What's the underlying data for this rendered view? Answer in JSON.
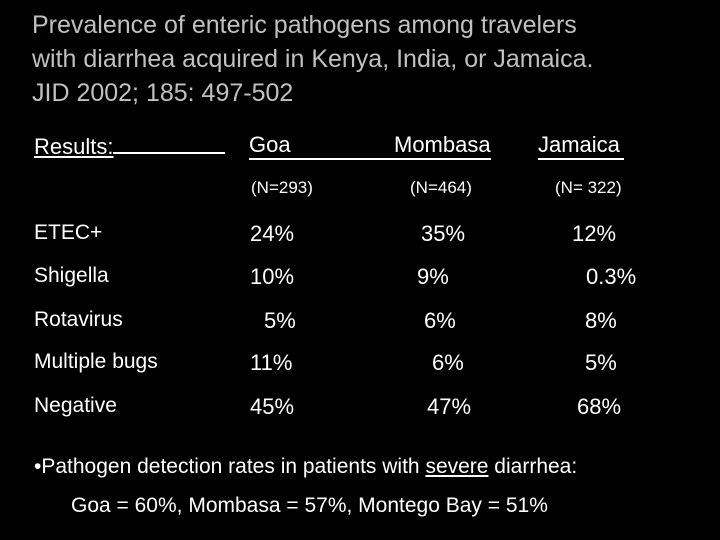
{
  "title": {
    "line1": "Prevalence of enteric pathogens among travelers",
    "line2": "with diarrhea acquired in Kenya, India, or Jamaica.",
    "line3": "JID 2002; 185: 497-502"
  },
  "table": {
    "results_label": "Results:",
    "columns": [
      {
        "name": "Goa",
        "n": "(N=293)"
      },
      {
        "name": "Mombasa",
        "n": "(N=464)"
      },
      {
        "name": "Jamaica",
        "n": "(N= 322)"
      }
    ],
    "rows": [
      {
        "label": "ETEC+",
        "values": [
          "24%",
          "35%",
          "12%"
        ]
      },
      {
        "label": "Shigella",
        "values": [
          "10%",
          "9%",
          "0.3%"
        ]
      },
      {
        "label": "Rotavirus",
        "values": [
          "5%",
          "6%",
          "8%"
        ]
      },
      {
        "label": "Multiple bugs",
        "values": [
          "11%",
          "6%",
          "5%"
        ]
      },
      {
        "label": "Negative",
        "values": [
          "45%",
          "47%",
          "68%"
        ]
      }
    ]
  },
  "footer": {
    "bullet_prefix": "•Pathogen detection rates in patients with ",
    "bullet_emph": "severe",
    "bullet_suffix": " diarrhea:",
    "summary": "Goa = 60%, Mombasa = 57%, Montego Bay = 51%"
  },
  "colors": {
    "background": "#000000",
    "text": "#ffffff",
    "title": "#c0c0c0"
  }
}
